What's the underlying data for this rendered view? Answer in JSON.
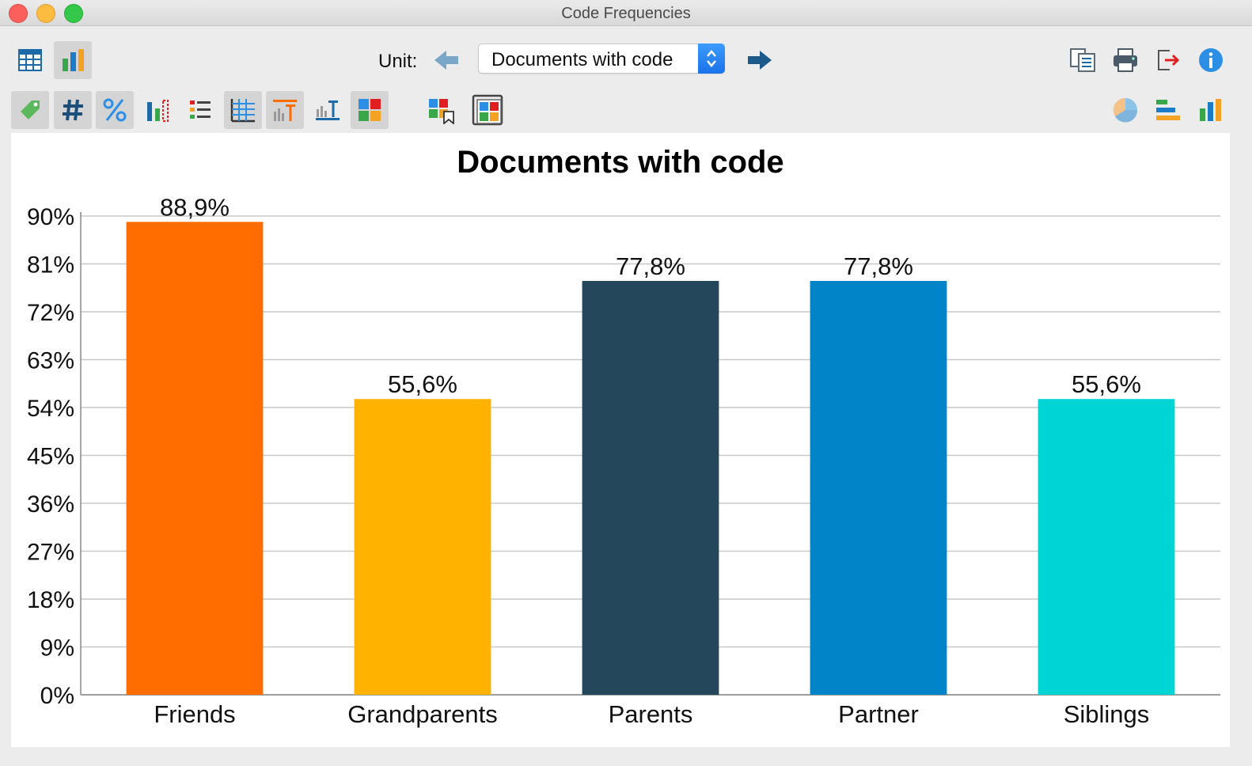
{
  "window": {
    "title": "Code Frequencies"
  },
  "toolbar": {
    "unit_label": "Unit:",
    "unit_value": "Documents with code",
    "view_buttons": [
      {
        "icon": "table-view-icon",
        "active": false
      },
      {
        "icon": "chart-view-icon",
        "active": true
      }
    ],
    "right_buttons": [
      "copy-icon",
      "print-icon",
      "export-icon",
      "info-icon"
    ],
    "format_buttons": [
      {
        "icon": "tag-icon",
        "active": true
      },
      {
        "icon": "hash-icon",
        "active": true
      },
      {
        "icon": "percent-icon",
        "active": true
      },
      {
        "icon": "bar-dashed-icon",
        "active": false
      },
      {
        "icon": "list-icon",
        "active": false
      },
      {
        "icon": "grid-icon",
        "active": true
      },
      {
        "icon": "bar-label-orange-icon",
        "active": true
      },
      {
        "icon": "bar-label-blue-icon",
        "active": false
      },
      {
        "icon": "color-squares-icon",
        "active": true
      },
      {
        "icon": "color-bookmark-icon",
        "active": false
      },
      {
        "icon": "color-frame-icon",
        "active": false
      }
    ],
    "chart_type_buttons": [
      "pie-chart-icon",
      "horizontal-bar-icon",
      "vertical-bar-icon"
    ]
  },
  "chart_data": {
    "type": "bar",
    "title": "Documents with code",
    "categories": [
      "Friends",
      "Grandparents",
      "Parents",
      "Partner",
      "Siblings"
    ],
    "values": [
      88.9,
      55.6,
      77.8,
      77.8,
      55.6
    ],
    "value_labels": [
      "88,9%",
      "55,6%",
      "77,8%",
      "77,8%",
      "55,6%"
    ],
    "colors": [
      "#ff6d00",
      "#ffb300",
      "#24475c",
      "#0284c8",
      "#00d4d4"
    ],
    "ylim": [
      0,
      90
    ],
    "yticks": [
      0,
      9,
      18,
      27,
      36,
      45,
      54,
      63,
      72,
      81,
      90
    ],
    "ytick_labels": [
      "0%",
      "9%",
      "18%",
      "27%",
      "36%",
      "45%",
      "54%",
      "63%",
      "72%",
      "81%",
      "90%"
    ],
    "grid": true,
    "legend": "none"
  }
}
